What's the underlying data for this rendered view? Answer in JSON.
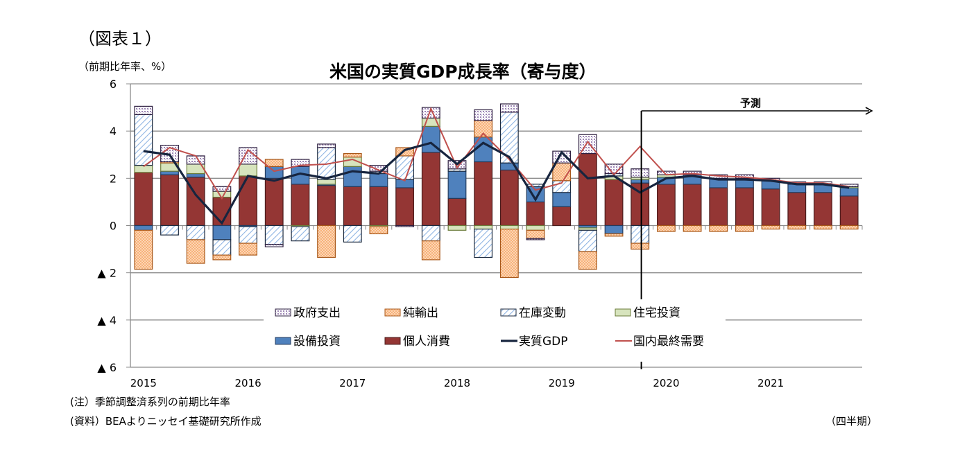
{
  "figure_label": "（図表１）",
  "unit_label": "（前期比年率、%）",
  "footnotes": {
    "note": "(注）季節調整済系列の前期比年率",
    "source": "(資料）BEAよりニッセイ基礎研究所作成",
    "period": "（四半期）"
  },
  "chart_data": {
    "type": "bar",
    "stacked": true,
    "title": "米国の実質GDP成長率（寄与度）",
    "ylabel": "（前期比年率、%）",
    "xlabel": "（四半期）",
    "ylim": [
      -6,
      6
    ],
    "yticks": [
      6,
      4,
      2,
      0,
      -2,
      -4,
      -6
    ],
    "ytick_labels": [
      "6",
      "4",
      "2",
      "0",
      "▲ 2",
      "▲ 4",
      "▲ 6"
    ],
    "grid": "horizontal",
    "year_labels": [
      {
        "label": "2015",
        "quarter_index": 0
      },
      {
        "label": "2016",
        "quarter_index": 4
      },
      {
        "label": "2017",
        "quarter_index": 8
      },
      {
        "label": "2018",
        "quarter_index": 12
      },
      {
        "label": "2019",
        "quarter_index": 16
      },
      {
        "label": "2020",
        "quarter_index": 20
      },
      {
        "label": "2021",
        "quarter_index": 24
      }
    ],
    "categories": [
      "2015Q1",
      "2015Q2",
      "2015Q3",
      "2015Q4",
      "2016Q1",
      "2016Q2",
      "2016Q3",
      "2016Q4",
      "2017Q1",
      "2017Q2",
      "2017Q3",
      "2017Q4",
      "2018Q1",
      "2018Q2",
      "2018Q3",
      "2018Q4",
      "2019Q1",
      "2019Q2",
      "2019Q3",
      "2019Q4",
      "2020Q1",
      "2020Q2",
      "2020Q3",
      "2020Q4",
      "2021Q1",
      "2021Q2",
      "2021Q3",
      "2021Q4"
    ],
    "forecast": {
      "label": "予測",
      "start_index": 20
    },
    "legend": {
      "position": "center-bottom",
      "columns": 4
    },
    "series": [
      {
        "name": "個人消費",
        "kind": "bar",
        "color": "#943634",
        "pattern": "solid",
        "values": [
          2.25,
          2.15,
          2.05,
          1.2,
          2.1,
          2.0,
          1.75,
          1.7,
          1.65,
          1.65,
          1.6,
          3.1,
          1.15,
          2.7,
          2.35,
          1.0,
          0.8,
          3.05,
          1.95,
          1.8,
          1.75,
          1.75,
          1.6,
          1.6,
          1.55,
          1.4,
          1.4,
          1.25
        ]
      },
      {
        "name": "設備投資",
        "kind": "bar",
        "color": "#4f81bd",
        "pattern": "solid",
        "values": [
          -0.2,
          0.15,
          0.15,
          -0.6,
          -0.05,
          0.5,
          0.75,
          0.05,
          0.85,
          0.55,
          0.35,
          1.1,
          1.15,
          1.05,
          0.3,
          0.65,
          0.6,
          -0.1,
          -0.35,
          0.15,
          0.3,
          0.4,
          0.4,
          0.4,
          0.35,
          0.35,
          0.35,
          0.35
        ]
      },
      {
        "name": "住宅投資",
        "kind": "bar",
        "color": "#d7e4bd",
        "pattern": "solid",
        "values": [
          0.3,
          0.35,
          0.4,
          0.25,
          0.5,
          0.0,
          -0.05,
          0.2,
          0.4,
          -0.05,
          0.0,
          0.35,
          -0.2,
          -0.15,
          -0.15,
          -0.2,
          0.0,
          -0.1,
          0.15,
          0.1,
          0.1,
          0.0,
          0.0,
          0.0,
          0.0,
          0.0,
          0.0,
          0.05
        ]
      },
      {
        "name": "在庫変動",
        "kind": "bar",
        "color": "#b9cde5",
        "pattern": "hatch",
        "values": [
          2.15,
          -0.4,
          -0.6,
          -0.65,
          -0.7,
          -0.8,
          -0.6,
          1.35,
          -0.7,
          0.1,
          1.0,
          -0.65,
          0.1,
          -1.2,
          2.15,
          0.1,
          0.5,
          -0.9,
          0.1,
          -0.75,
          0.0,
          0.0,
          0.0,
          0.0,
          0.0,
          0.0,
          0.0,
          0.0
        ]
      },
      {
        "name": "純輸出",
        "kind": "bar",
        "color": "#fac090",
        "pattern": "checker",
        "values": [
          -1.65,
          0.05,
          -1.0,
          -0.2,
          -0.5,
          0.3,
          0.0,
          -1.35,
          0.15,
          -0.3,
          0.35,
          -0.8,
          0.0,
          0.7,
          -2.05,
          -0.35,
          0.75,
          -0.75,
          -0.1,
          -0.25,
          -0.25,
          -0.25,
          -0.25,
          -0.25,
          -0.15,
          -0.15,
          -0.15,
          -0.15
        ]
      },
      {
        "name": "政府支出",
        "kind": "bar",
        "color": "#ccc0da",
        "pattern": "dots",
        "values": [
          0.35,
          0.7,
          0.35,
          0.2,
          0.7,
          -0.1,
          0.3,
          0.15,
          0.0,
          0.25,
          -0.05,
          0.45,
          0.35,
          0.45,
          0.35,
          -0.05,
          0.5,
          0.8,
          0.4,
          0.35,
          0.15,
          0.15,
          0.15,
          0.15,
          0.1,
          0.1,
          0.1,
          0.1
        ]
      },
      {
        "name": "実質GDP",
        "kind": "line",
        "color": "#17253f",
        "values": [
          3.15,
          3.0,
          1.3,
          0.1,
          2.1,
          1.9,
          2.2,
          2.0,
          2.3,
          2.2,
          3.2,
          3.5,
          2.6,
          3.5,
          2.9,
          1.1,
          3.1,
          2.0,
          2.1,
          1.4,
          2.0,
          2.1,
          1.95,
          1.95,
          1.9,
          1.75,
          1.75,
          1.6
        ]
      },
      {
        "name": "国内最終需要",
        "kind": "line",
        "color": "#c0504d",
        "values": [
          2.5,
          3.3,
          2.95,
          1.15,
          3.2,
          2.3,
          2.55,
          2.6,
          2.8,
          2.35,
          1.9,
          4.95,
          2.45,
          3.9,
          2.8,
          1.5,
          1.8,
          3.55,
          2.15,
          3.35,
          2.15,
          2.2,
          2.1,
          2.05,
          1.95,
          1.8,
          1.8,
          1.65
        ]
      }
    ],
    "legend_order": [
      "政府支出",
      "純輸出",
      "在庫変動",
      "住宅投資",
      "設備投資",
      "個人消費",
      "実質GDP",
      "国内最終需要"
    ]
  }
}
